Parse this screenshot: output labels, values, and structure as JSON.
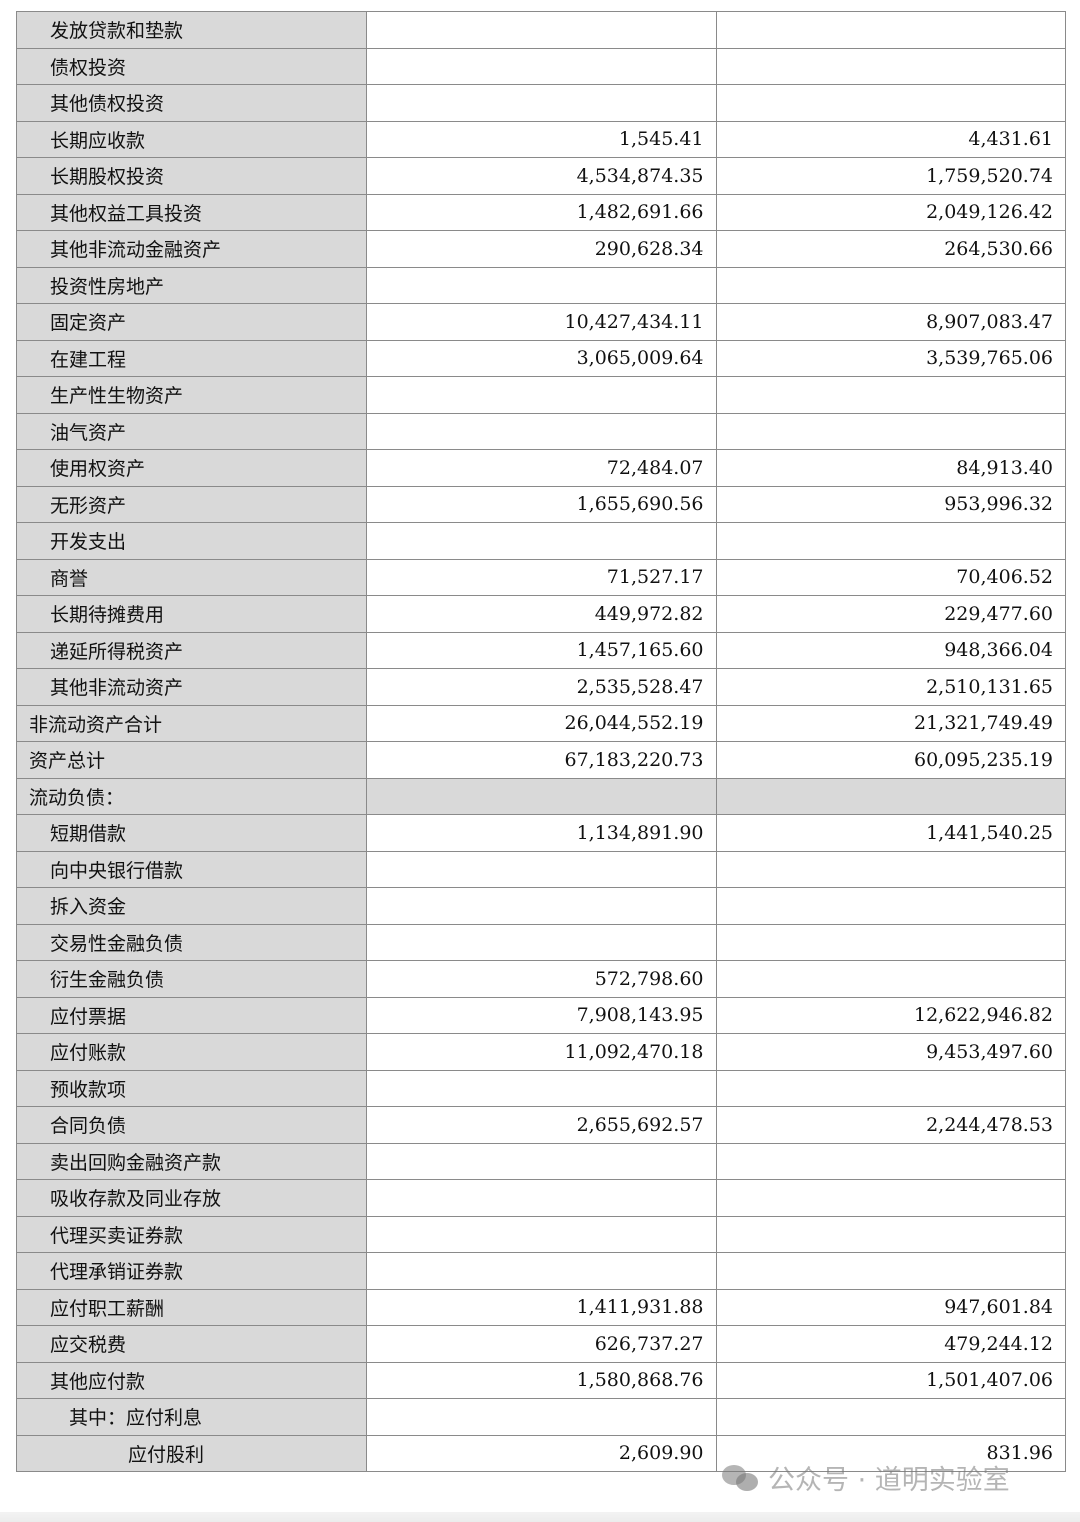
{
  "rows": [
    {
      "label": "发放贷款和垫款",
      "level": 2,
      "current": "",
      "previous": ""
    },
    {
      "label": "债权投资",
      "level": 2,
      "current": "",
      "previous": ""
    },
    {
      "label": "其他债权投资",
      "level": 2,
      "current": "",
      "previous": ""
    },
    {
      "label": "长期应收款",
      "level": 2,
      "current": "1,545.41",
      "previous": "4,431.61"
    },
    {
      "label": "长期股权投资",
      "level": 2,
      "current": "4,534,874.35",
      "previous": "1,759,520.74"
    },
    {
      "label": "其他权益工具投资",
      "level": 2,
      "current": "1,482,691.66",
      "previous": "2,049,126.42"
    },
    {
      "label": "其他非流动金融资产",
      "level": 2,
      "current": "290,628.34",
      "previous": "264,530.66"
    },
    {
      "label": "投资性房地产",
      "level": 2,
      "current": "",
      "previous": ""
    },
    {
      "label": "固定资产",
      "level": 2,
      "current": "10,427,434.11",
      "previous": "8,907,083.47"
    },
    {
      "label": "在建工程",
      "level": 2,
      "current": "3,065,009.64",
      "previous": "3,539,765.06"
    },
    {
      "label": "生产性生物资产",
      "level": 2,
      "current": "",
      "previous": ""
    },
    {
      "label": "油气资产",
      "level": 2,
      "current": "",
      "previous": ""
    },
    {
      "label": "使用权资产",
      "level": 2,
      "current": "72,484.07",
      "previous": "84,913.40"
    },
    {
      "label": "无形资产",
      "level": 2,
      "current": "1,655,690.56",
      "previous": "953,996.32"
    },
    {
      "label": "开发支出",
      "level": 2,
      "current": "",
      "previous": ""
    },
    {
      "label": "商誉",
      "level": 2,
      "current": "71,527.17",
      "previous": "70,406.52"
    },
    {
      "label": "长期待摊费用",
      "level": 2,
      "current": "449,972.82",
      "previous": "229,477.60"
    },
    {
      "label": "递延所得税资产",
      "level": 2,
      "current": "1,457,165.60",
      "previous": "948,366.04"
    },
    {
      "label": "其他非流动资产",
      "level": 2,
      "current": "2,535,528.47",
      "previous": "2,510,131.65"
    },
    {
      "label": "非流动资产合计",
      "level": 1,
      "current": "26,044,552.19",
      "previous": "21,321,749.49"
    },
    {
      "label": "资产总计",
      "level": 1,
      "current": "67,183,220.73",
      "previous": "60,095,235.19"
    },
    {
      "label": "流动负债：",
      "level": 1,
      "section": true,
      "current": "",
      "previous": ""
    },
    {
      "label": "短期借款",
      "level": 2,
      "current": "1,134,891.90",
      "previous": "1,441,540.25"
    },
    {
      "label": "向中央银行借款",
      "level": 2,
      "current": "",
      "previous": ""
    },
    {
      "label": "拆入资金",
      "level": 2,
      "current": "",
      "previous": ""
    },
    {
      "label": "交易性金融负债",
      "level": 2,
      "current": "",
      "previous": ""
    },
    {
      "label": "衍生金融负债",
      "level": 2,
      "current": "572,798.60",
      "previous": ""
    },
    {
      "label": "应付票据",
      "level": 2,
      "current": "7,908,143.95",
      "previous": "12,622,946.82"
    },
    {
      "label": "应付账款",
      "level": 2,
      "current": "11,092,470.18",
      "previous": "9,453,497.60"
    },
    {
      "label": "预收款项",
      "level": 2,
      "current": "",
      "previous": ""
    },
    {
      "label": "合同负债",
      "level": 2,
      "current": "2,655,692.57",
      "previous": "2,244,478.53"
    },
    {
      "label": "卖出回购金融资产款",
      "level": 2,
      "current": "",
      "previous": ""
    },
    {
      "label": "吸收存款及同业存放",
      "level": 2,
      "current": "",
      "previous": ""
    },
    {
      "label": "代理买卖证券款",
      "level": 2,
      "current": "",
      "previous": ""
    },
    {
      "label": "代理承销证券款",
      "level": 2,
      "current": "",
      "previous": ""
    },
    {
      "label": "应付职工薪酬",
      "level": 2,
      "current": "1,411,931.88",
      "previous": "947,601.84"
    },
    {
      "label": "应交税费",
      "level": 2,
      "current": "626,737.27",
      "previous": "479,244.12"
    },
    {
      "label": "其他应付款",
      "level": 2,
      "current": "1,580,868.76",
      "previous": "1,501,407.06"
    },
    {
      "label": "其中：应付利息",
      "level": 3,
      "current": "",
      "previous": ""
    },
    {
      "label": "应付股利",
      "level": 4,
      "current": "2,609.90",
      "previous": "831.96"
    }
  ],
  "watermark": {
    "icon": "wechat-icon",
    "text": "公众号 · 道明实验室"
  },
  "colors": {
    "label_bg": "#d9d9d9",
    "border": "#8a8a8a"
  }
}
